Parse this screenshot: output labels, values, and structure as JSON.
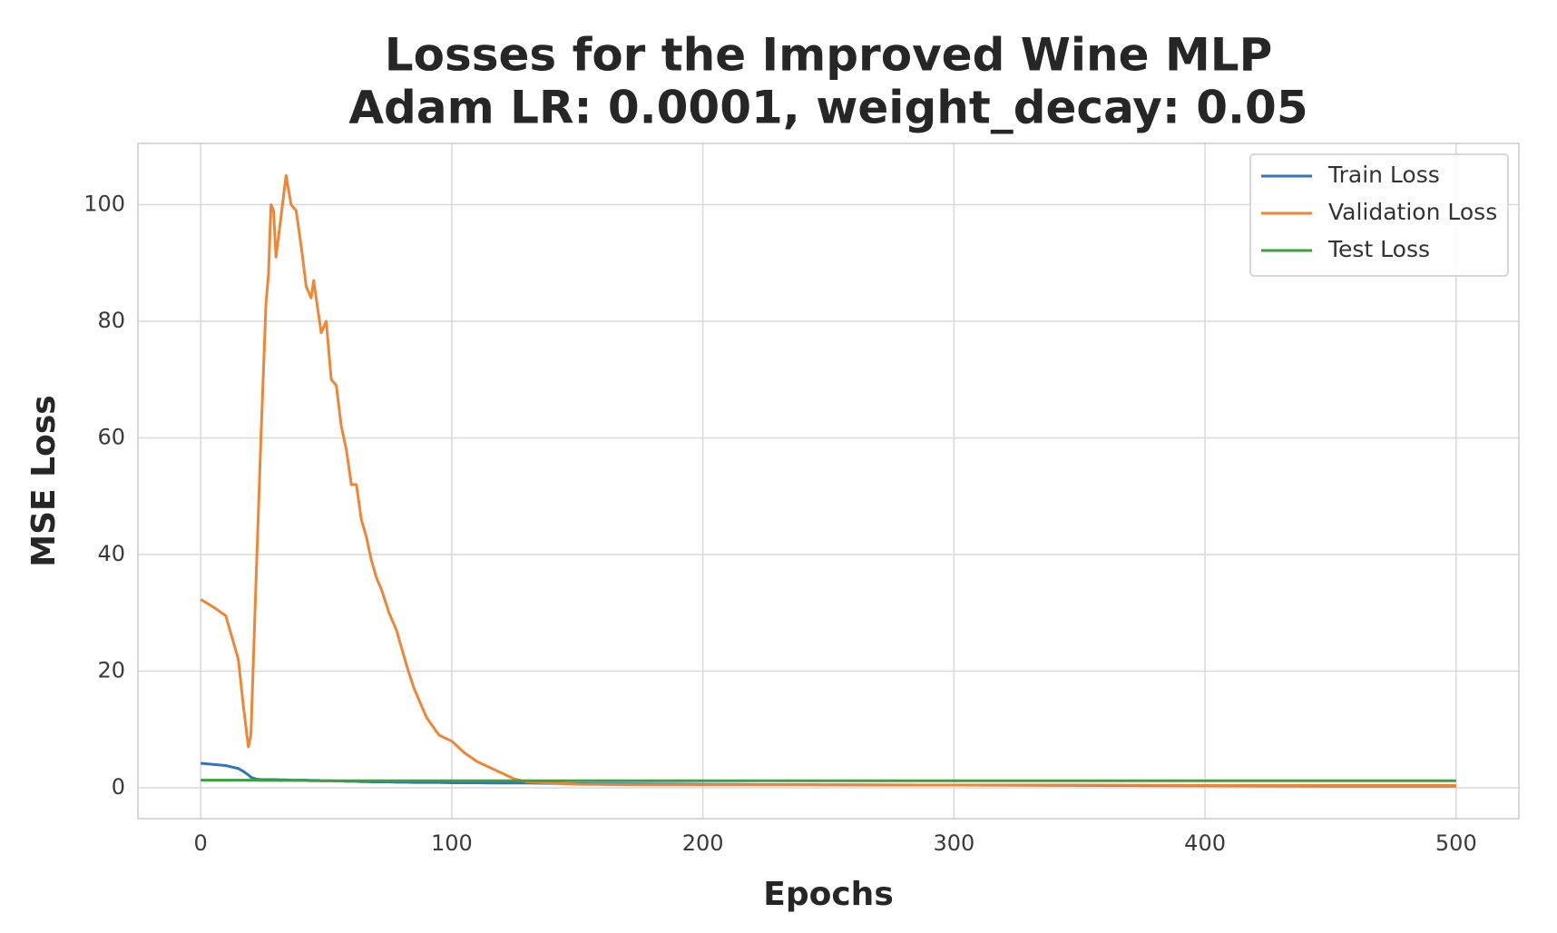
{
  "chart_data": {
    "type": "line",
    "title": "Losses for the Improved Wine MLP",
    "subtitle": "Adam LR: 0.0001, weight_decay: 0.05",
    "x_label": "Epochs",
    "y_label": "MSE Loss",
    "x": [
      0,
      5,
      10,
      15,
      17,
      19,
      20,
      22,
      24,
      26,
      27,
      28,
      29,
      30,
      32,
      34,
      36,
      38,
      40,
      42,
      44,
      45,
      47,
      48,
      50,
      52,
      54,
      56,
      58,
      60,
      62,
      64,
      66,
      68,
      70,
      72,
      75,
      78,
      80,
      82,
      85,
      88,
      90,
      95,
      100,
      105,
      110,
      115,
      120,
      125,
      130,
      140,
      150,
      175,
      200,
      250,
      300,
      350,
      400,
      450,
      500
    ],
    "series": [
      {
        "name": "Train Loss",
        "color": "#3274b5",
        "values": [
          4.2,
          4.0,
          3.8,
          3.3,
          2.8,
          2.2,
          1.8,
          1.5,
          1.4,
          1.4,
          1.4,
          1.4,
          1.4,
          1.4,
          1.35,
          1.35,
          1.3,
          1.3,
          1.3,
          1.3,
          1.25,
          1.25,
          1.25,
          1.2,
          1.2,
          1.2,
          1.15,
          1.15,
          1.1,
          1.1,
          1.1,
          1.05,
          1.05,
          1.0,
          1.0,
          1.0,
          1.0,
          0.95,
          0.95,
          0.95,
          0.9,
          0.9,
          0.9,
          0.9,
          0.85,
          0.85,
          0.85,
          0.8,
          0.8,
          0.8,
          0.8,
          0.75,
          0.7,
          0.65,
          0.6,
          0.5,
          0.45,
          0.4,
          0.35,
          0.3,
          0.3
        ]
      },
      {
        "name": "Validation Loss",
        "color": "#ef8636",
        "values": [
          32.3,
          31,
          29.5,
          22,
          14,
          7,
          9,
          35,
          60,
          83,
          88,
          100,
          99,
          91,
          98,
          105,
          100,
          99,
          93,
          86,
          84,
          87,
          81,
          78,
          80,
          70,
          69,
          62,
          58,
          52,
          52,
          46,
          43,
          39,
          36,
          34,
          30,
          27,
          24,
          21,
          17,
          14,
          12,
          9,
          8,
          6,
          4.5,
          3.5,
          2.5,
          1.5,
          1.0,
          0.8,
          0.6,
          0.5,
          0.5,
          0.5,
          0.45,
          0.45,
          0.4,
          0.4,
          0.4
        ]
      },
      {
        "name": "Test Loss",
        "color": "#3ba13b",
        "values": [
          1.3,
          1.3,
          1.3,
          1.3,
          1.3,
          1.3,
          1.3,
          1.3,
          1.25,
          1.25,
          1.25,
          1.25,
          1.25,
          1.25,
          1.25,
          1.25,
          1.25,
          1.25,
          1.25,
          1.25,
          1.2,
          1.2,
          1.2,
          1.2,
          1.2,
          1.2,
          1.2,
          1.2,
          1.2,
          1.2,
          1.2,
          1.2,
          1.2,
          1.2,
          1.2,
          1.2,
          1.2,
          1.2,
          1.2,
          1.2,
          1.2,
          1.2,
          1.2,
          1.2,
          1.2,
          1.2,
          1.2,
          1.2,
          1.2,
          1.2,
          1.2,
          1.2,
          1.2,
          1.2,
          1.2,
          1.2,
          1.2,
          1.2,
          1.2,
          1.2,
          1.2
        ]
      }
    ],
    "xlim": [
      -25,
      525
    ],
    "ylim": [
      -5.3,
      110.5
    ],
    "xticks": [
      0,
      100,
      200,
      300,
      400,
      500
    ],
    "yticks": [
      0,
      20,
      40,
      60,
      80,
      100
    ],
    "grid": true,
    "legend": "upper-right"
  }
}
